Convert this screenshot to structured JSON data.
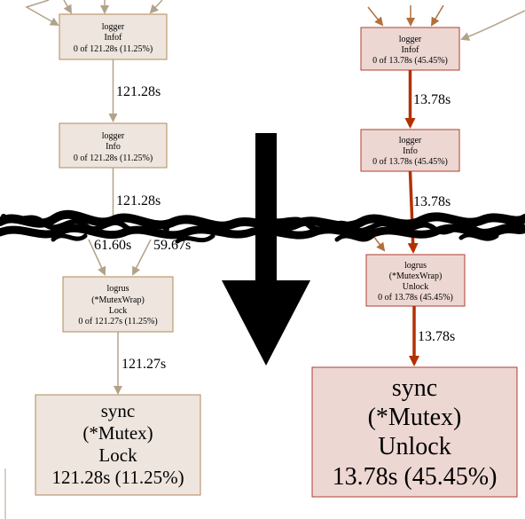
{
  "colors": {
    "tan_edge": "#b2a28a",
    "tan_arrow": "#b2a28a",
    "tan_node_fill": "#ede5de",
    "tan_node_border": "#b2895a",
    "red_edge": "#b23100",
    "red_light_edge": "#b2703e",
    "red_node_fill": "#edd7d3",
    "red_node_border": "#b23c2c",
    "big_arrow": "#000000"
  },
  "left": {
    "node_infof": {
      "line1": "logger",
      "line2": "Infof",
      "line3": "0 of 121.28s (11.25%)"
    },
    "edge1": "121.28s",
    "node_info": {
      "line1": "logger",
      "line2": "Info",
      "line3": "0 of 121.28s (11.25%)"
    },
    "edge2": "121.28s",
    "edge3a": "61.60s",
    "edge3b": "59.67s",
    "node_lock": {
      "line1": "logrus",
      "line2": "(*MutexWrap)",
      "line3": "Lock",
      "line4": "0 of 121.27s (11.25%)"
    },
    "edge4": "121.27s",
    "node_sync": {
      "line1": "sync",
      "line2": "(*Mutex)",
      "line3": "Lock",
      "line4": "121.28s (11.25%)"
    }
  },
  "right": {
    "node_infof": {
      "line1": "logger",
      "line2": "Infof",
      "line3": "0 of 13.78s (45.45%)"
    },
    "edge1": "13.78s",
    "node_info": {
      "line1": "logger",
      "line2": "Info",
      "line3": "0 of 13.78s (45.45%)"
    },
    "edge2": "13.78s",
    "node_unlock": {
      "line1": "logrus",
      "line2": "(*MutexWrap)",
      "line3": "Unlock",
      "line4": "0 of 13.78s (45.45%)"
    },
    "edge4": "13.78s",
    "node_sync": {
      "line1": "sync",
      "line2": "(*Mutex)",
      "line3": "Unlock",
      "line4": "13.78s (45.45%)"
    }
  }
}
